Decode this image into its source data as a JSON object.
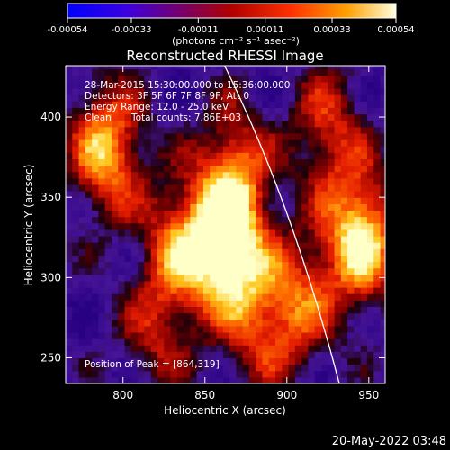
{
  "chart_data": {
    "type": "heatmap",
    "title": "Reconstructed RHESSI Image",
    "xlabel": "Heliocentric X (arcsec)",
    "ylabel": "Heliocentric Y (arcsec)",
    "xlim": [
      765,
      960
    ],
    "ylim": [
      234,
      432
    ],
    "x_ticks": [
      800,
      850,
      900,
      950
    ],
    "y_ticks": [
      250,
      300,
      350,
      400
    ],
    "colorbar": {
      "unit_label": "(photons cm⁻² s⁻¹ asec⁻²)",
      "range": [
        -0.00054,
        0.00054
      ],
      "ticks": [
        "-0.00054",
        "-0.00033",
        "-0.00011",
        "0.00011",
        "0.00033",
        "0.00054"
      ]
    },
    "annotations": {
      "line1": "28-Mar-2015 15:30:00.000 to 15:36:00.000",
      "line2": "Detectors: 3F 5F 6F 7F 8F 9F, Att 0",
      "line3": "Energy Range: 12.0 - 25.0 keV",
      "line4_left": "Clean",
      "line4_right": "Total counts: 7.86E+03",
      "peak": "Position of Peak = [864,319]"
    },
    "sources": [
      {
        "x": 864,
        "y": 319,
        "level": 1.0
      },
      {
        "x": 945,
        "y": 325,
        "level": 0.9
      },
      {
        "x": 790,
        "y": 380,
        "level": 0.75
      },
      {
        "x": 868,
        "y": 368,
        "level": 0.55
      },
      {
        "x": 835,
        "y": 320,
        "level": 0.6
      },
      {
        "x": 908,
        "y": 285,
        "level": 0.5
      },
      {
        "x": 820,
        "y": 265,
        "level": 0.35
      },
      {
        "x": 925,
        "y": 392,
        "level": 0.45
      },
      {
        "x": 883,
        "y": 270,
        "level": 0.4
      }
    ],
    "limb": [
      [
        862,
        432
      ],
      [
        900,
        340
      ],
      [
        932,
        234
      ]
    ]
  },
  "footer": {
    "date": "20-May-2022 03:48"
  },
  "colors": {
    "background": "#000000",
    "text": "#ffffff"
  }
}
